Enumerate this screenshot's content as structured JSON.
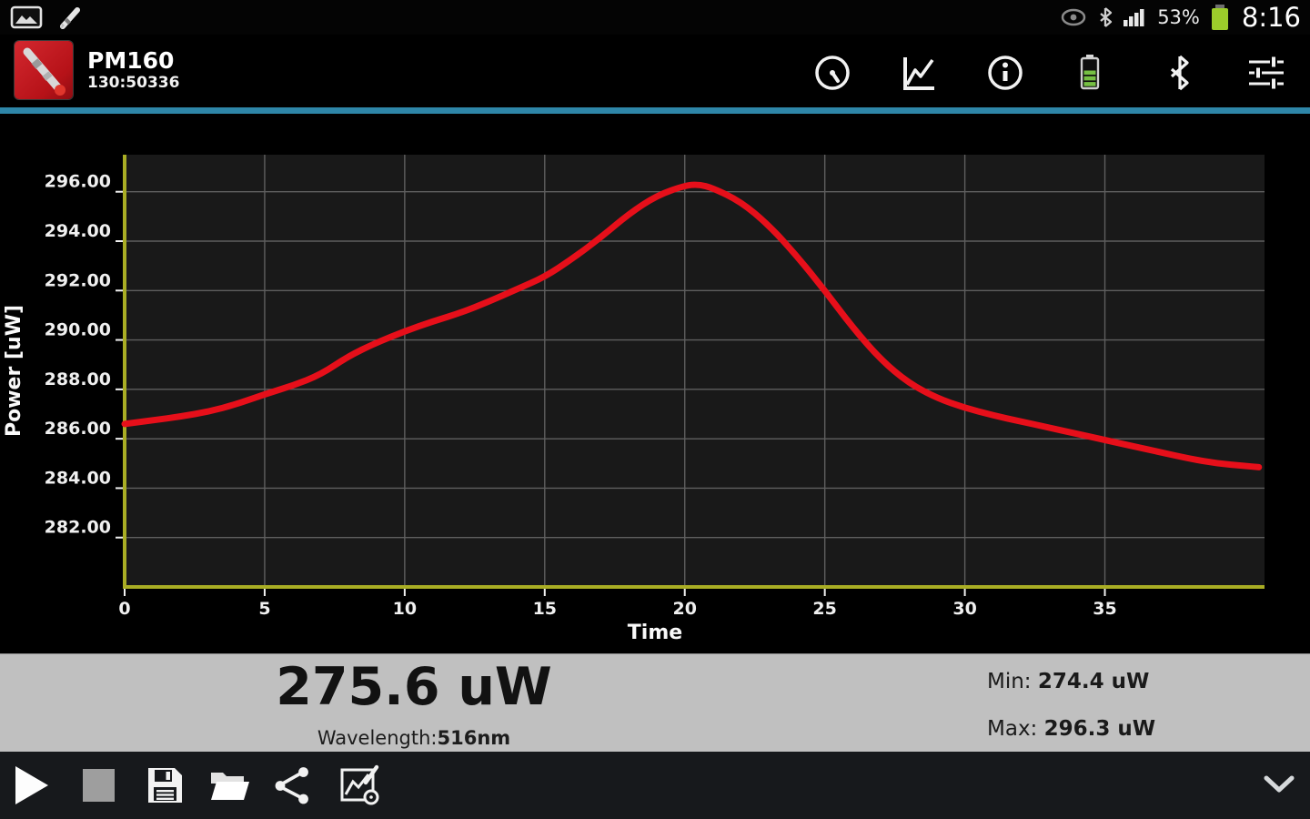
{
  "status_bar": {
    "time": "8:16",
    "battery_percent": "53%",
    "left_icons": [
      "screenshot-icon",
      "stylus-icon"
    ],
    "right_icons": [
      "smart-stay-icon",
      "bluetooth-icon",
      "signal-icon",
      "battery-icon"
    ]
  },
  "app_bar": {
    "title": "PM160",
    "subtitle": "130:50336",
    "app_icon": "power-meter-probe-icon",
    "actions": [
      {
        "name": "gauge-icon"
      },
      {
        "name": "chart-icon"
      },
      {
        "name": "info-icon"
      },
      {
        "name": "battery-icon"
      },
      {
        "name": "bluetooth-icon"
      },
      {
        "name": "settings-sliders-icon"
      }
    ],
    "accent_divider_color": "#2e86a8"
  },
  "chart_data": {
    "type": "line",
    "title": "",
    "xlabel": "Time",
    "ylabel": "Power [uW]",
    "xlim": [
      0,
      40.7
    ],
    "ylim": [
      280,
      297.5
    ],
    "x_ticks": [
      0,
      5,
      10,
      15,
      20,
      25,
      30,
      35
    ],
    "y_ticks": [
      282,
      284,
      286,
      288,
      290,
      292,
      294,
      296
    ],
    "grid": true,
    "legend": "none",
    "bg": "#000000",
    "plot_bg": "#191919",
    "grid_color": "#5f5f5f",
    "axis_color": "#a9ad24",
    "tick_color": "#f0f0f0",
    "series": [
      {
        "name": "Power",
        "color": "#e60f1a",
        "line_width": 7,
        "x": [
          0,
          1,
          2,
          3,
          4,
          5,
          6,
          7,
          8,
          9,
          10,
          11,
          12,
          13,
          14,
          15,
          16,
          17,
          18,
          19,
          20,
          20.5,
          21,
          22,
          23,
          24,
          25,
          26,
          27,
          28,
          29,
          30,
          31,
          32,
          33,
          34,
          35,
          36,
          37,
          38,
          39,
          40,
          40.5
        ],
        "y": [
          286.6,
          286.75,
          286.9,
          287.1,
          287.4,
          287.8,
          288.15,
          288.6,
          289.35,
          289.9,
          290.35,
          290.75,
          291.1,
          291.55,
          292.05,
          292.55,
          293.3,
          294.15,
          295.1,
          295.85,
          296.25,
          296.3,
          296.15,
          295.6,
          294.65,
          293.4,
          292.0,
          290.5,
          289.2,
          288.25,
          287.65,
          287.25,
          286.95,
          286.7,
          286.45,
          286.2,
          285.95,
          285.7,
          285.45,
          285.2,
          285.0,
          284.9,
          284.85
        ]
      }
    ]
  },
  "readout": {
    "value": "275.6 uW",
    "wavelength_label": "Wavelength:",
    "wavelength_value": "516nm",
    "min_label": "Min:",
    "min_value": "274.4 uW",
    "max_label": "Max:",
    "max_value": "296.3 uW",
    "panel_bg": "#c0c0c0"
  },
  "toolbar": {
    "buttons": [
      {
        "name": "play"
      },
      {
        "name": "stop",
        "disabled": true
      },
      {
        "name": "save"
      },
      {
        "name": "open-folder"
      },
      {
        "name": "share"
      },
      {
        "name": "chart-settings"
      }
    ],
    "expand": {
      "name": "chevron-down"
    }
  }
}
